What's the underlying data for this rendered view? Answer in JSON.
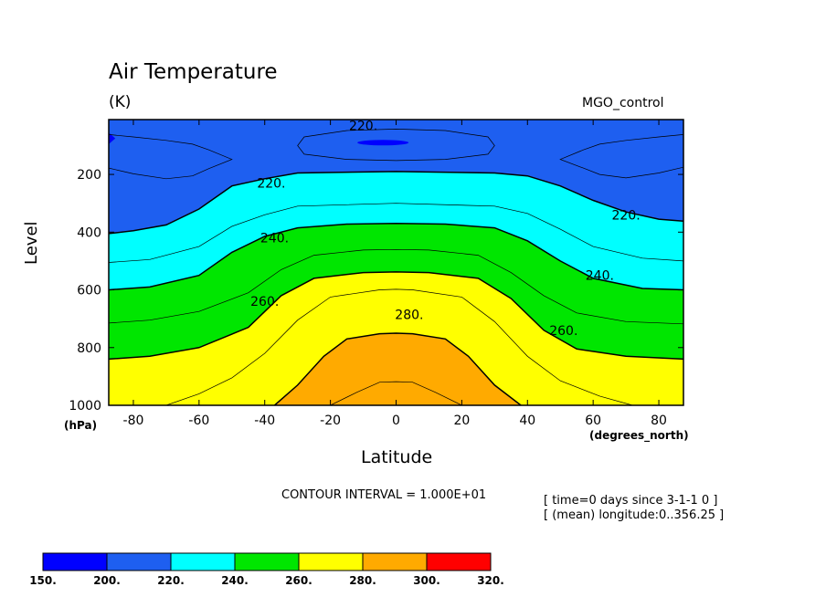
{
  "header": {
    "title": "Air Temperature",
    "units": "(K)",
    "dataset": "MGO_control"
  },
  "axes": {
    "ylabel": "Level",
    "yunit": "(hPa)",
    "xlabel": "Latitude",
    "xunit": "(degrees_north)"
  },
  "footer": {
    "contour_interval": "CONTOUR INTERVAL = 1.000E+01",
    "time": "[ time=0 days since 3-1-1 0 ]",
    "longitude": "[ (mean) longitude:0..356.25 ]"
  },
  "chart_data": {
    "type": "heatmap",
    "subtype": "filled-contour",
    "title": "Air Temperature",
    "units": "(K)",
    "xlabel": "Latitude",
    "ylabel": "Level",
    "xlim": [
      -87.5,
      87.5
    ],
    "ylim": [
      1000,
      10
    ],
    "x_ticks": [
      -80,
      -60,
      -40,
      -20,
      0,
      20,
      40,
      60,
      80
    ],
    "x_tick_labels": [
      "-80",
      "-60",
      "-40",
      "-20",
      "0",
      "20",
      "40",
      "60",
      "80"
    ],
    "y_ticks": [
      200,
      400,
      600,
      800,
      1000
    ],
    "y_tick_labels": [
      "200",
      "400",
      "600",
      "800",
      "1000"
    ],
    "contour_interval": 10,
    "colorbar": {
      "boundaries": [
        150,
        200,
        220,
        240,
        260,
        280,
        300,
        320
      ],
      "boundary_labels": [
        "150.",
        "200.",
        "220.",
        "240.",
        "260.",
        "280.",
        "300.",
        "320."
      ],
      "colors": [
        "#0000ff",
        "#1e5ff0",
        "#00ffff",
        "#00e600",
        "#ffff00",
        "#ffaa00",
        "#ff0000"
      ]
    },
    "contour_labels": [
      {
        "text": "220.",
        "lat": -10,
        "level": 30
      },
      {
        "text": "220.",
        "lat": -38,
        "level": 230
      },
      {
        "text": "240.",
        "lat": -37,
        "level": 420
      },
      {
        "text": "260.",
        "lat": -40,
        "level": 640
      },
      {
        "text": "280.",
        "lat": 4,
        "level": 685
      },
      {
        "text": "220.",
        "lat": 70,
        "level": 340
      },
      {
        "text": "240.",
        "lat": 62,
        "level": 550
      },
      {
        "text": "260.",
        "lat": 51,
        "level": 740
      }
    ],
    "isotherms": [
      {
        "value": 210,
        "points": [
          [
            -87.5,
            178
          ],
          [
            -80,
            198
          ],
          [
            -70,
            215
          ],
          [
            -62,
            205
          ],
          [
            -57,
            180
          ],
          [
            -50,
            148
          ],
          [
            -57,
            115
          ],
          [
            -62,
            95
          ],
          [
            -70,
            82
          ],
          [
            -80,
            70
          ],
          [
            -87.5,
            62
          ]
        ]
      },
      {
        "value": 210,
        "points": [
          [
            87.5,
            175
          ],
          [
            80,
            195
          ],
          [
            70,
            212
          ],
          [
            62,
            200
          ],
          [
            57,
            178
          ],
          [
            50,
            148
          ],
          [
            57,
            115
          ],
          [
            62,
            95
          ],
          [
            70,
            82
          ],
          [
            80,
            70
          ],
          [
            87.5,
            62
          ]
        ]
      },
      {
        "value": 210,
        "closed": true,
        "points": [
          [
            -30,
            100
          ],
          [
            -28,
            70
          ],
          [
            -15,
            48
          ],
          [
            0,
            43
          ],
          [
            15,
            48
          ],
          [
            28,
            70
          ],
          [
            30,
            100
          ],
          [
            28,
            130
          ],
          [
            15,
            148
          ],
          [
            0,
            152
          ],
          [
            -15,
            148
          ],
          [
            -28,
            130
          ]
        ]
      },
      {
        "value": 220,
        "points": [
          [
            -87.5,
            405
          ],
          [
            -80,
            395
          ],
          [
            -70,
            375
          ],
          [
            -60,
            320
          ],
          [
            -50,
            240
          ],
          [
            -40,
            215
          ],
          [
            -30,
            195
          ],
          [
            0,
            190
          ],
          [
            30,
            195
          ],
          [
            40,
            205
          ],
          [
            50,
            240
          ],
          [
            60,
            290
          ],
          [
            70,
            330
          ],
          [
            80,
            355
          ],
          [
            87.5,
            362
          ]
        ]
      },
      {
        "value": 230,
        "points": [
          [
            -87.5,
            505
          ],
          [
            -75,
            495
          ],
          [
            -60,
            450
          ],
          [
            -50,
            380
          ],
          [
            -40,
            340
          ],
          [
            -30,
            310
          ],
          [
            0,
            300
          ],
          [
            30,
            310
          ],
          [
            40,
            335
          ],
          [
            50,
            390
          ],
          [
            60,
            450
          ],
          [
            75,
            490
          ],
          [
            87.5,
            500
          ]
        ]
      },
      {
        "value": 240,
        "points": [
          [
            -87.5,
            600
          ],
          [
            -75,
            590
          ],
          [
            -60,
            550
          ],
          [
            -50,
            470
          ],
          [
            -40,
            415
          ],
          [
            -30,
            385
          ],
          [
            -15,
            372
          ],
          [
            0,
            370
          ],
          [
            15,
            372
          ],
          [
            30,
            385
          ],
          [
            40,
            430
          ],
          [
            50,
            500
          ],
          [
            60,
            560
          ],
          [
            75,
            595
          ],
          [
            87.5,
            600
          ]
        ]
      },
      {
        "value": 250,
        "points": [
          [
            -87.5,
            715
          ],
          [
            -75,
            705
          ],
          [
            -60,
            675
          ],
          [
            -45,
            610
          ],
          [
            -35,
            530
          ],
          [
            -25,
            480
          ],
          [
            -10,
            462
          ],
          [
            0,
            460
          ],
          [
            10,
            462
          ],
          [
            25,
            480
          ],
          [
            35,
            540
          ],
          [
            45,
            620
          ],
          [
            55,
            680
          ],
          [
            70,
            710
          ],
          [
            87.5,
            718
          ]
        ]
      },
      {
        "value": 260,
        "points": [
          [
            -87.5,
            840
          ],
          [
            -75,
            830
          ],
          [
            -60,
            800
          ],
          [
            -45,
            730
          ],
          [
            -35,
            620
          ],
          [
            -25,
            560
          ],
          [
            -10,
            540
          ],
          [
            0,
            538
          ],
          [
            10,
            540
          ],
          [
            25,
            560
          ],
          [
            35,
            630
          ],
          [
            45,
            740
          ],
          [
            55,
            805
          ],
          [
            70,
            830
          ],
          [
            87.5,
            840
          ]
        ]
      },
      {
        "value": 270,
        "points": [
          [
            -70,
            1000
          ],
          [
            -60,
            960
          ],
          [
            -50,
            905
          ],
          [
            -40,
            820
          ],
          [
            -30,
            705
          ],
          [
            -20,
            625
          ],
          [
            -5,
            600
          ],
          [
            0,
            598
          ],
          [
            5,
            600
          ],
          [
            20,
            625
          ],
          [
            30,
            710
          ],
          [
            40,
            830
          ],
          [
            50,
            915
          ],
          [
            62,
            968
          ],
          [
            72,
            1000
          ]
        ]
      },
      {
        "value": 280,
        "points": [
          [
            -37,
            1000
          ],
          [
            -30,
            930
          ],
          [
            -22,
            830
          ],
          [
            -15,
            770
          ],
          [
            -5,
            752
          ],
          [
            0,
            750
          ],
          [
            5,
            752
          ],
          [
            15,
            770
          ],
          [
            22,
            830
          ],
          [
            30,
            930
          ],
          [
            38,
            1000
          ]
        ]
      },
      {
        "value": 290,
        "points": [
          [
            -20,
            1000
          ],
          [
            -12,
            955
          ],
          [
            -5,
            920
          ],
          [
            0,
            918
          ],
          [
            5,
            920
          ],
          [
            12,
            955
          ],
          [
            20,
            1000
          ]
        ]
      }
    ]
  }
}
